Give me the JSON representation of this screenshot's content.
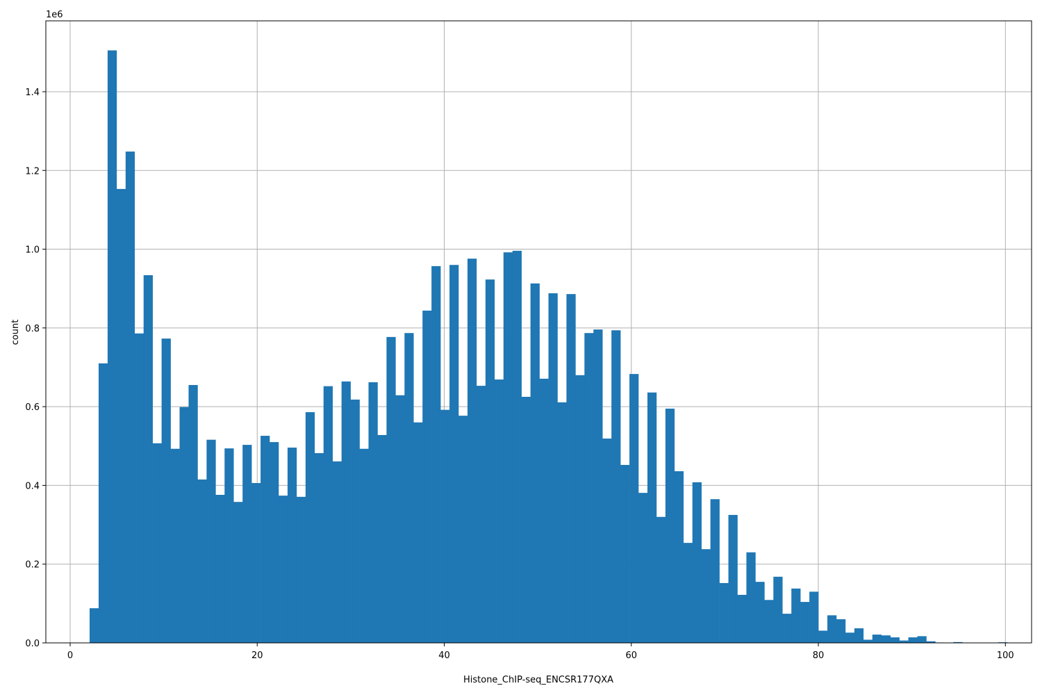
{
  "chart_data": {
    "type": "bar",
    "subtype": "histogram",
    "title": "",
    "xlabel": "Histone_ChIP-seq_ENCSR177QXA",
    "ylabel": "count",
    "y_offset_label": "1e6",
    "xlim": [
      -2.6,
      102.8
    ],
    "ylim": [
      0,
      1580000
    ],
    "grid": true,
    "legend": null,
    "bar_color": "#1f77b4",
    "x_ticks": [
      0,
      20,
      40,
      60,
      80,
      100
    ],
    "x_tick_labels": [
      "0",
      "20",
      "40",
      "60",
      "80",
      "100"
    ],
    "y_ticks": [
      0,
      200000,
      400000,
      600000,
      800000,
      1000000,
      1200000,
      1400000
    ],
    "y_tick_labels": [
      "0.0",
      "0.2",
      "0.4",
      "0.6",
      "0.8",
      "1.0",
      "1.2",
      "1.4"
    ],
    "bin_start": 2.08,
    "bin_width": 0.962,
    "values": [
      88000,
      710000,
      1505000,
      1153000,
      1248000,
      786000,
      934000,
      507000,
      773000,
      493000,
      599000,
      655000,
      415000,
      516000,
      376000,
      494000,
      358000,
      503000,
      406000,
      526000,
      510000,
      374000,
      496000,
      371000,
      586000,
      482000,
      652000,
      461000,
      664000,
      618000,
      493000,
      662000,
      528000,
      777000,
      629000,
      787000,
      560000,
      844000,
      957000,
      592000,
      960000,
      577000,
      976000,
      653000,
      923000,
      669000,
      992000,
      996000,
      625000,
      913000,
      671000,
      888000,
      611000,
      886000,
      680000,
      787000,
      796000,
      519000,
      794000,
      452000,
      683000,
      381000,
      636000,
      320000,
      595000,
      436000,
      254000,
      408000,
      238000,
      365000,
      152000,
      325000,
      122000,
      230000,
      155000,
      109000,
      168000,
      74000,
      138000,
      104000,
      130000,
      31000,
      70000,
      60000,
      26000,
      37000,
      8000,
      21000,
      19000,
      14000,
      6000,
      14000,
      17000,
      4000,
      1000,
      0,
      2000,
      0,
      0,
      0,
      0,
      1500,
      0
    ]
  }
}
